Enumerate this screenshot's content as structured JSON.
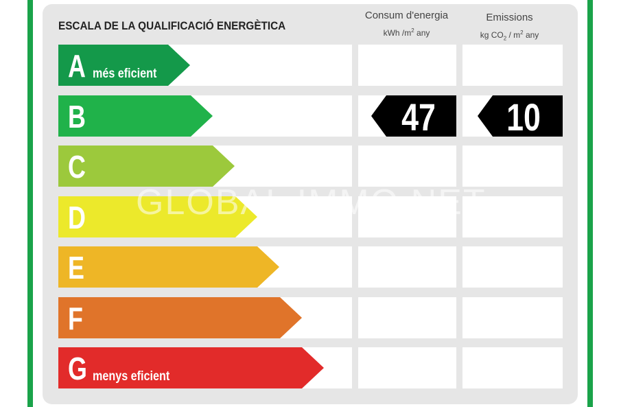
{
  "title": "ESCALA DE LA QUALIFICACIÓ ENERGÈTICA",
  "columns": {
    "consum": {
      "label": "Consum d'energia",
      "unit_pre": "kWh /m",
      "unit_sup": "2",
      "unit_post": " any"
    },
    "emissions": {
      "label": "Emissions",
      "unit_a": "kg CO",
      "unit_sub": "2",
      "unit_b": " / m",
      "unit_sup": "2",
      "unit_c": " any"
    }
  },
  "ratings": [
    {
      "letter": "A",
      "color": "#14994a",
      "sublabel": "més eficient"
    },
    {
      "letter": "B",
      "color": "#20b24a",
      "sublabel": ""
    },
    {
      "letter": "C",
      "color": "#9cc93c",
      "sublabel": ""
    },
    {
      "letter": "D",
      "color": "#ece92b",
      "sublabel": ""
    },
    {
      "letter": "E",
      "color": "#eeb626",
      "sublabel": ""
    },
    {
      "letter": "F",
      "color": "#e0742a",
      "sublabel": ""
    },
    {
      "letter": "G",
      "color": "#e22b2a",
      "sublabel": "menys eficient"
    }
  ],
  "result": {
    "rating": "B",
    "consum_value": "47",
    "emissions_value": "10"
  },
  "watermark": "GLOBAL IMMO.NET",
  "colors": {
    "frame_green": "#1aa34a",
    "card_bg": "#e6e6e6",
    "value_badge": "#000000"
  }
}
